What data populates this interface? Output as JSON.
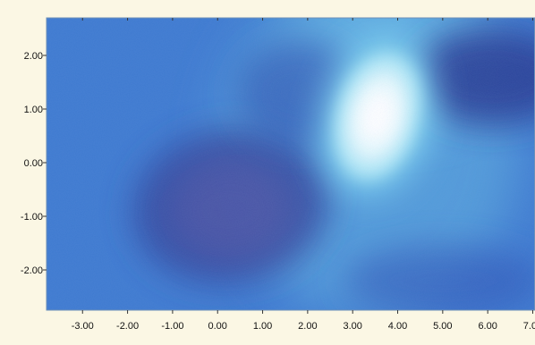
{
  "chart_data": {
    "type": "heatmap",
    "title": "",
    "xlabel": "",
    "ylabel": "",
    "xlim": [
      -3.8,
      7.05
    ],
    "ylim": [
      -2.75,
      2.7
    ],
    "x_ticks": [
      -3.0,
      -2.0,
      -1.0,
      0.0,
      1.0,
      2.0,
      3.0,
      4.0,
      5.0,
      6.0,
      7.0
    ],
    "x_tick_labels": [
      "-3.00",
      "-2.00",
      "-1.00",
      "0.00",
      "1.00",
      "2.00",
      "3.00",
      "4.00",
      "5.00",
      "6.00",
      "7.00"
    ],
    "y_ticks": [
      2.0,
      1.0,
      0.0,
      -1.0,
      -2.0
    ],
    "y_tick_labels": [
      "2.00",
      "1.00",
      "0.00",
      "-1.00",
      "-2.00"
    ],
    "grid": false,
    "colormap": [
      "#1f3f9c",
      "#2e63c4",
      "#4d9ad6",
      "#8fd0ea",
      "#ffffff"
    ],
    "background_color": "#3f7bd0",
    "features": [
      {
        "kind": "peak",
        "x": 3.55,
        "y": 1.0,
        "intensity": 1.0
      },
      {
        "kind": "trough",
        "x": 0.3,
        "y": -0.8,
        "intensity": -0.55
      },
      {
        "kind": "trough",
        "x": 6.1,
        "y": 1.6,
        "intensity": -0.6
      },
      {
        "kind": "trough",
        "x": 1.8,
        "y": 1.3,
        "intensity": -0.35
      },
      {
        "kind": "trough",
        "x": 5.0,
        "y": -2.2,
        "intensity": -0.3
      }
    ]
  }
}
